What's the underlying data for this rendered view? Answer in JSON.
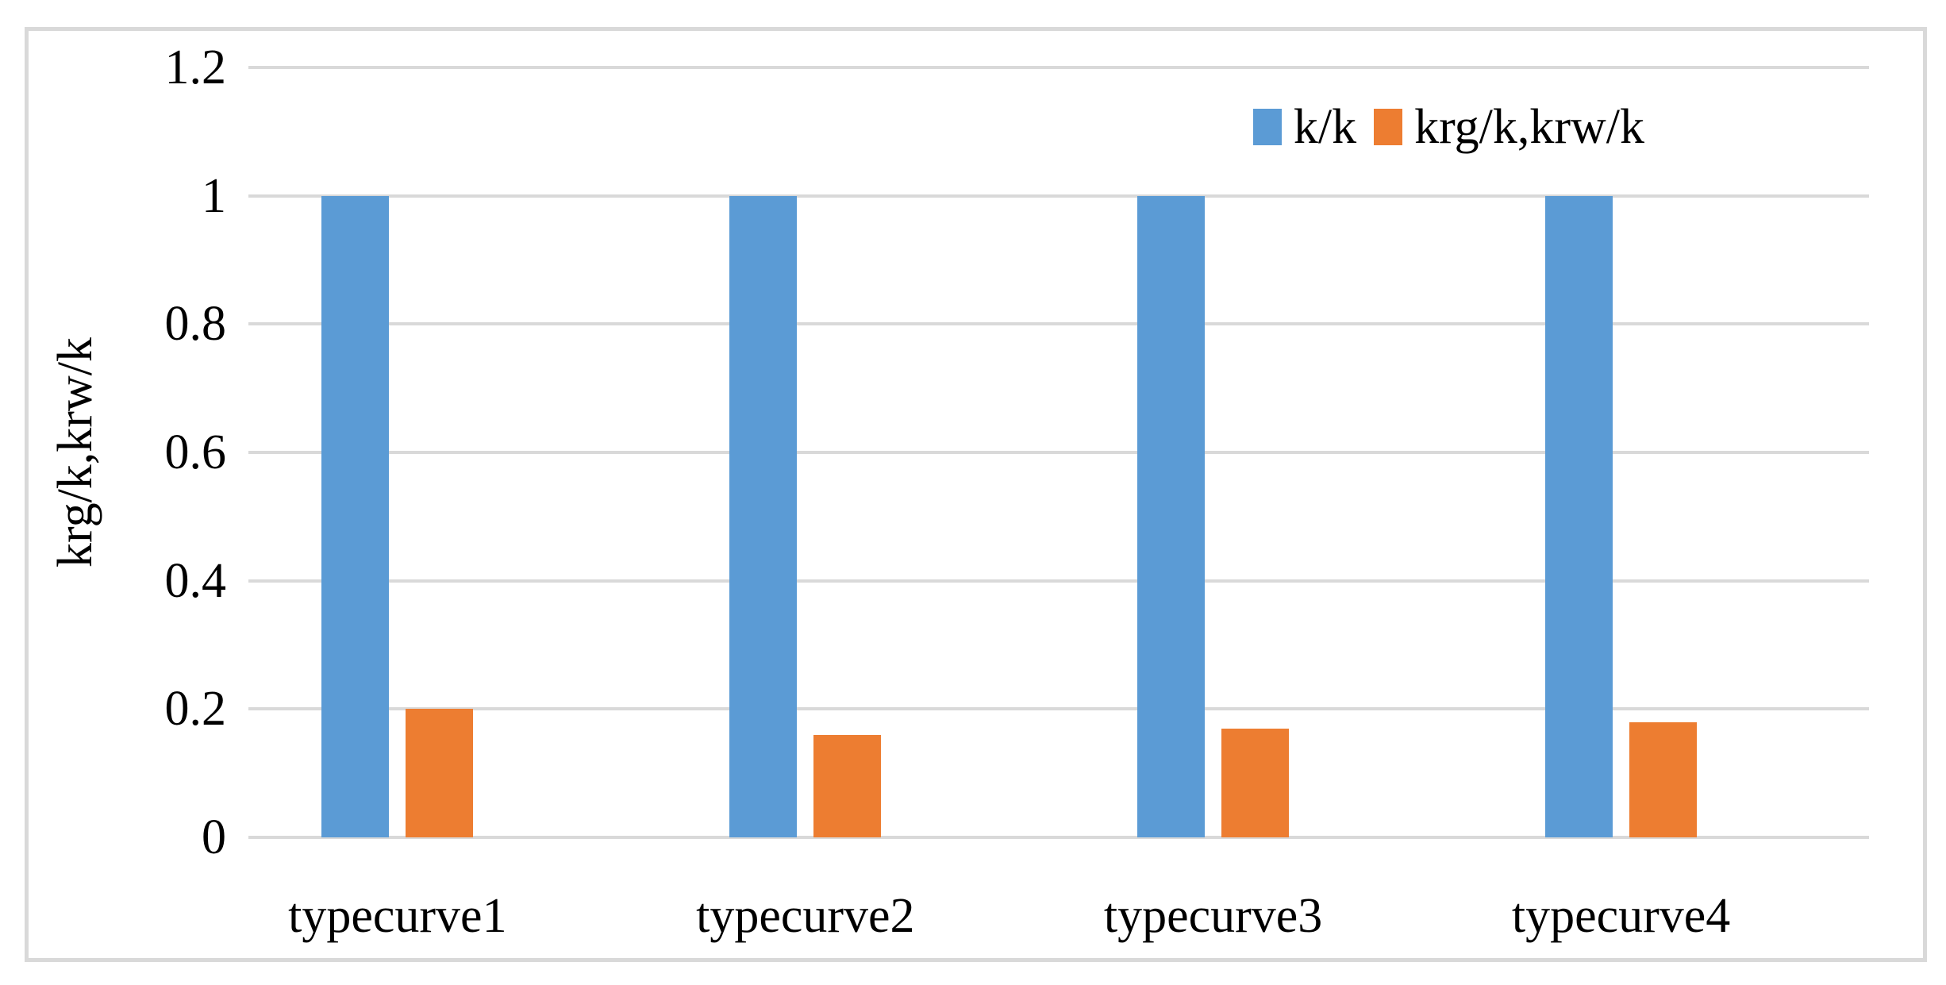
{
  "chart_data": {
    "type": "bar",
    "title": "",
    "categories": [
      "typecurve1",
      "typecurve2",
      "typecurve3",
      "typecurve4"
    ],
    "series": [
      {
        "name": "k/k",
        "color": "#5B9BD5",
        "values": [
          1,
          1,
          1,
          1
        ]
      },
      {
        "name": "krg/k,krw/k",
        "color": "#ED7D31",
        "values": [
          0.2,
          0.16,
          0.17,
          0.18
        ]
      }
    ],
    "xlabel": "",
    "ylabel": "krg/k,krw/k",
    "ylim": [
      0,
      1.2
    ],
    "yticks": [
      {
        "value": 1.2,
        "label": "1.2"
      },
      {
        "value": 1.0,
        "label": "1"
      },
      {
        "value": 0.8,
        "label": "0.8"
      },
      {
        "value": 0.6,
        "label": "0.6"
      },
      {
        "value": 0.4,
        "label": "0.4"
      },
      {
        "value": 0.2,
        "label": "0.2"
      },
      {
        "value": 0.0,
        "label": "0"
      }
    ],
    "grid": true,
    "legend_position": "top-right-inside",
    "colors": {
      "gridline": "#D9D9D9",
      "frame_border": "#D9D9D9",
      "background": "#FFFFFF",
      "text": "#000000"
    }
  }
}
